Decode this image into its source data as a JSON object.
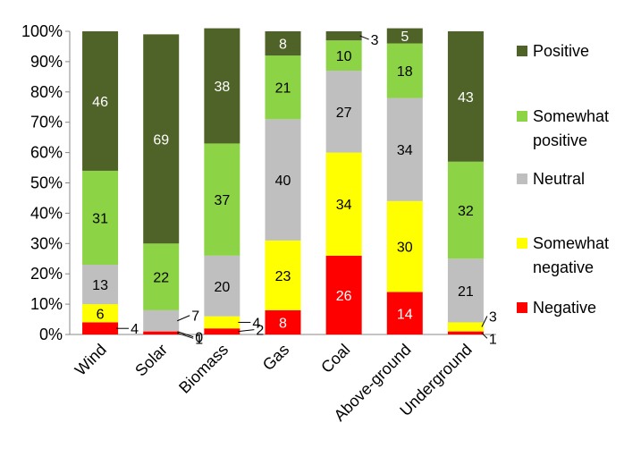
{
  "chart_data": {
    "type": "bar",
    "stacked": true,
    "orientation": "vertical",
    "categories": [
      "Wind",
      "Solar",
      "Biomass",
      "Gas",
      "Coal",
      "Above-ground",
      "Underground"
    ],
    "series": [
      {
        "name": "Negative",
        "color": "#ff0000",
        "values": [
          4,
          1,
          2,
          8,
          26,
          14,
          1
        ]
      },
      {
        "name": "Somewhat negative",
        "color": "#ffff00",
        "values": [
          6,
          0,
          4,
          23,
          34,
          30,
          3
        ]
      },
      {
        "name": "Neutral",
        "color": "#bfbfbf",
        "values": [
          13,
          7,
          20,
          40,
          27,
          34,
          21
        ]
      },
      {
        "name": "Somewhat positive",
        "color": "#8dd346",
        "values": [
          31,
          22,
          37,
          21,
          10,
          18,
          32
        ]
      },
      {
        "name": "Positive",
        "color": "#4f6228",
        "values": [
          46,
          69,
          38,
          8,
          3,
          5,
          43
        ]
      }
    ],
    "ylim": [
      0,
      100
    ],
    "y_ticks": [
      "0%",
      "10%",
      "20%",
      "30%",
      "40%",
      "50%",
      "60%",
      "70%",
      "80%",
      "90%",
      "100%"
    ],
    "legend_position": "right",
    "legend_order": [
      "Positive",
      "Somewhat positive",
      "Neutral",
      "Somewhat negative",
      "Negative"
    ],
    "grid": false
  }
}
